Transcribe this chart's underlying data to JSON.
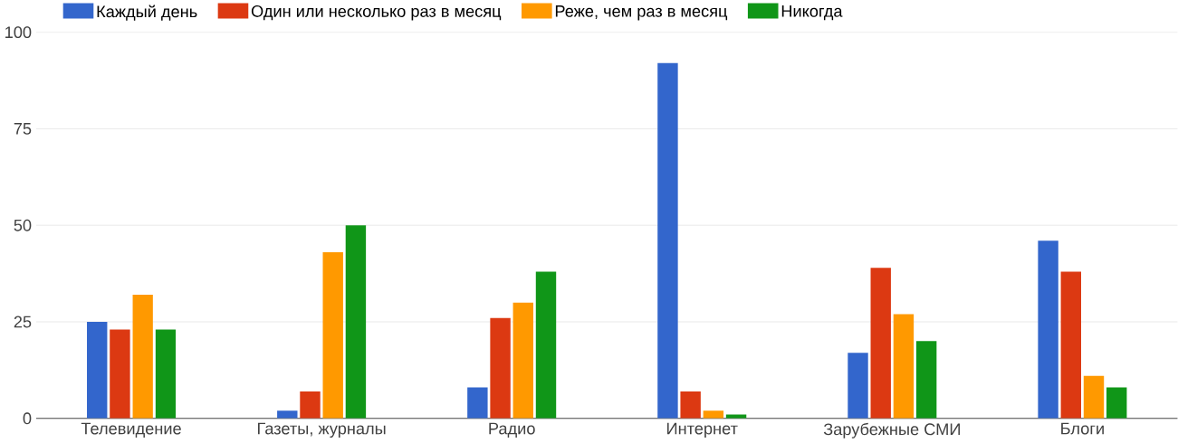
{
  "chart_data": {
    "type": "bar",
    "categories": [
      "Телевидение",
      "Газеты, журналы",
      "Радио",
      "Интернет",
      "Зарубежные СМИ",
      "Блоги"
    ],
    "series": [
      {
        "name": "Каждый день",
        "color": "#3366cc",
        "values": [
          25,
          2,
          8,
          92,
          17,
          46
        ]
      },
      {
        "name": "Один или несколько раз в месяц",
        "color": "#dc3912",
        "values": [
          23,
          7,
          26,
          7,
          39,
          38
        ]
      },
      {
        "name": "Реже, чем раз в месяц",
        "color": "#ff9900",
        "values": [
          32,
          43,
          30,
          2,
          27,
          11
        ]
      },
      {
        "name": "Никогда",
        "color": "#109618",
        "values": [
          23,
          50,
          38,
          1,
          20,
          8
        ]
      }
    ],
    "ylim": [
      0,
      100
    ],
    "yticks": [
      0,
      25,
      50,
      75,
      100
    ],
    "grid": "y",
    "legend": "top left"
  }
}
